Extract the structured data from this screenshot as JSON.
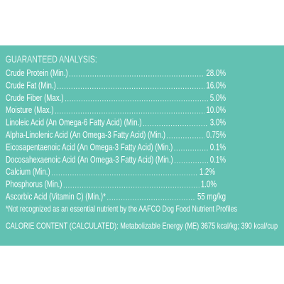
{
  "title": "GUARANTEED ANALYSIS:",
  "rows": [
    {
      "label": "Crude Protein (Min.)",
      "value": "28.0%"
    },
    {
      "label": "Crude Fat (Min.)",
      "value": "16.0%"
    },
    {
      "label": "Crude Fiber (Max.)",
      "value": "5.0%"
    },
    {
      "label": "Moisture  (Max.)",
      "value": "10.0%"
    },
    {
      "label": "Linoleic Acid (An Omega-6 Fatty Acid) (Min.)",
      "value": "3.0%"
    },
    {
      "label": "Alpha-Linolenic Acid (An Omega-3 Fatty Acid) (Min.)",
      "value": "0.75%"
    },
    {
      "label": "Eicosapentaenoic Acid (An Omega-3 Fatty Acid) (Min.)",
      "value": "0.1%"
    },
    {
      "label": "Docosahexaenoic Acid (An Omega-3 Fatty Acid) (Min.)",
      "value": "0.1%"
    },
    {
      "label": "Calcium (Min.)",
      "value": "1.2%"
    },
    {
      "label": "Phosphorus (Min.)",
      "value": "1.0%"
    },
    {
      "label": "Ascorbic Acid (Vitamin C) (Min.)*",
      "value": "55 mg/kg"
    }
  ],
  "footnote": "*Not recognized as an essential nutrient by the AAFCO Dog Food Nutrient Profiles",
  "calorie": "CALORIE CONTENT (CALCULATED): Metabolizable Energy (ME) 3675 kcal/kg; 390 kcal/cup"
}
